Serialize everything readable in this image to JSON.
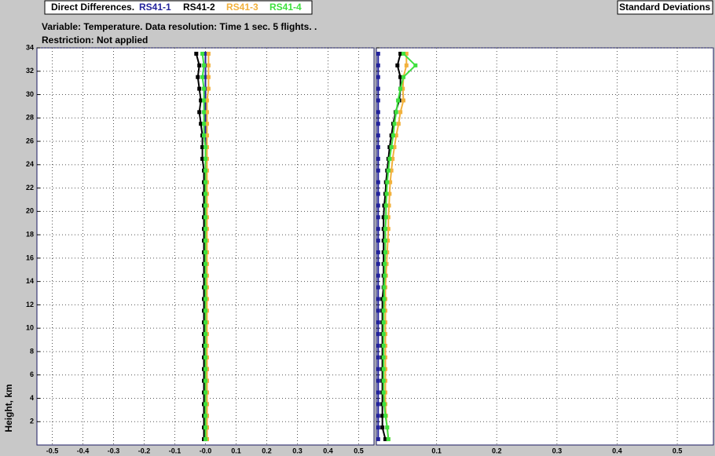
{
  "notes": [
    "Variable: Temperature. Data resolution: Time 1 sec. 5 flights. .",
    "Restriction: Not applied"
  ],
  "chart_data": [
    {
      "type": "profile",
      "title": "Direct Differences.",
      "ylabel": "Height, km",
      "heights": [
        0.5,
        1.5,
        2.5,
        3.5,
        4.5,
        5.5,
        6.5,
        7.5,
        8.5,
        9.5,
        10.5,
        11.5,
        12.5,
        13.5,
        14.5,
        15.5,
        16.5,
        17.5,
        18.5,
        19.5,
        20.5,
        21.5,
        22.5,
        23.5,
        24.5,
        25.5,
        26.5,
        27.5,
        28.5,
        29.5,
        30.5,
        31.5,
        32.5,
        33.5
      ],
      "xlim": [
        -0.55,
        0.55
      ],
      "ylim": [
        0,
        34
      ],
      "grid": true,
      "ytick_labels": true,
      "xticks": [
        -0.5,
        -0.4,
        -0.3,
        -0.2,
        -0.1,
        {
          "value": 0,
          "label": "-0.0"
        },
        0.1,
        0.2,
        0.3,
        0.4,
        0.5
      ],
      "yticks": [
        2,
        4,
        6,
        8,
        10,
        12,
        14,
        16,
        18,
        20,
        22,
        24,
        26,
        28,
        30,
        32,
        34
      ],
      "series": [
        {
          "name": "RS41-1",
          "color": "#23239b",
          "values": [
            0.005,
            0.005,
            0.005,
            0.005,
            0.005,
            0.005,
            0.005,
            0,
            0,
            0,
            0,
            0,
            0,
            0,
            0,
            0,
            0,
            0,
            0,
            0,
            0,
            0,
            0,
            0,
            0,
            0,
            0,
            0,
            0,
            0,
            0,
            0,
            0,
            0
          ]
        },
        {
          "name": "RS41-2",
          "color": "#000000",
          "values": [
            -0.005,
            -0.005,
            -0.005,
            -0.005,
            -0.005,
            -0.005,
            -0.005,
            -0.005,
            -0.005,
            -0.005,
            -0.005,
            -0.005,
            -0.005,
            -0.005,
            -0.005,
            -0.005,
            -0.005,
            -0.005,
            -0.005,
            -0.005,
            -0.005,
            -0.005,
            -0.005,
            -0.005,
            -0.01,
            -0.01,
            -0.01,
            -0.015,
            -0.02,
            -0.015,
            -0.02,
            -0.025,
            -0.02,
            -0.03
          ]
        },
        {
          "name": "RS41-3",
          "color": "#f2b13c",
          "values": [
            0.005,
            0.005,
            0.005,
            0.005,
            0.005,
            0.005,
            0.005,
            0.005,
            0.005,
            0.005,
            0.005,
            0.005,
            0.005,
            0.005,
            0.005,
            0.005,
            0.005,
            0.005,
            0.005,
            0.005,
            0.005,
            0.005,
            0.005,
            0.005,
            0.005,
            0.005,
            0.005,
            0.005,
            0.005,
            0.005,
            0.01,
            0.01,
            0.01,
            0.01
          ]
        },
        {
          "name": "RS41-4",
          "color": "#3fe03f",
          "values": [
            0,
            0,
            0,
            0,
            0,
            0,
            0,
            0,
            0,
            0,
            0,
            0,
            0,
            0,
            0,
            0,
            0,
            0,
            0,
            0,
            0,
            0,
            0,
            0,
            0,
            0,
            -0.005,
            -0.005,
            -0.005,
            -0.005,
            -0.005,
            -0.01,
            -0.005,
            -0.01
          ]
        }
      ]
    },
    {
      "type": "profile",
      "title": "Standard Deviations",
      "heights": [
        0.5,
        1.5,
        2.5,
        3.5,
        4.5,
        5.5,
        6.5,
        7.5,
        8.5,
        9.5,
        10.5,
        11.5,
        12.5,
        13.5,
        14.5,
        15.5,
        16.5,
        17.5,
        18.5,
        19.5,
        20.5,
        21.5,
        22.5,
        23.5,
        24.5,
        25.5,
        26.5,
        27.5,
        28.5,
        29.5,
        30.5,
        31.5,
        32.5,
        33.5
      ],
      "xlim": [
        0,
        0.56
      ],
      "ylim": [
        0,
        34
      ],
      "grid": true,
      "ytick_labels": false,
      "xticks": [
        0.1,
        0.2,
        0.3,
        0.4,
        0.5
      ],
      "yticks": [
        2,
        4,
        6,
        8,
        10,
        12,
        14,
        16,
        18,
        20,
        22,
        24,
        26,
        28,
        30,
        32,
        34
      ],
      "series": [
        {
          "color": "#23239b",
          "values": [
            0.003,
            0.003,
            0.003,
            0.003,
            0.003,
            0.003,
            0.003,
            0.003,
            0.003,
            0.003,
            0.003,
            0.003,
            0.003,
            0.003,
            0.003,
            0.003,
            0.003,
            0.003,
            0.003,
            0.003,
            0.003,
            0.003,
            0.003,
            0.003,
            0.003,
            0.003,
            0.003,
            0.003,
            0.003,
            0.003,
            0.003,
            0.003,
            0.003,
            0.003
          ]
        },
        {
          "color": "#000000",
          "values": [
            0.015,
            0.01,
            0.01,
            0.01,
            0.01,
            0.01,
            0.01,
            0.01,
            0.01,
            0.01,
            0.01,
            0.01,
            0.01,
            0.012,
            0.012,
            0.012,
            0.012,
            0.012,
            0.012,
            0.012,
            0.013,
            0.015,
            0.016,
            0.018,
            0.02,
            0.022,
            0.025,
            0.028,
            0.032,
            0.038,
            0.04,
            0.04,
            0.035,
            0.04
          ]
        },
        {
          "color": "#f2b13c",
          "values": [
            0.02,
            0.018,
            0.016,
            0.015,
            0.015,
            0.015,
            0.015,
            0.015,
            0.015,
            0.015,
            0.015,
            0.015,
            0.015,
            0.015,
            0.016,
            0.017,
            0.018,
            0.019,
            0.02,
            0.02,
            0.021,
            0.022,
            0.023,
            0.025,
            0.027,
            0.03,
            0.033,
            0.037,
            0.04,
            0.045,
            0.044,
            0.045,
            0.05,
            0.05
          ]
        },
        {
          "color": "#3fe03f",
          "values": [
            0.02,
            0.018,
            0.015,
            0.013,
            0.012,
            0.012,
            0.012,
            0.012,
            0.012,
            0.012,
            0.012,
            0.012,
            0.013,
            0.013,
            0.014,
            0.014,
            0.015,
            0.015,
            0.015,
            0.016,
            0.016,
            0.017,
            0.018,
            0.02,
            0.022,
            0.025,
            0.028,
            0.03,
            0.033,
            0.036,
            0.04,
            0.045,
            0.065,
            0.045
          ]
        }
      ]
    }
  ]
}
